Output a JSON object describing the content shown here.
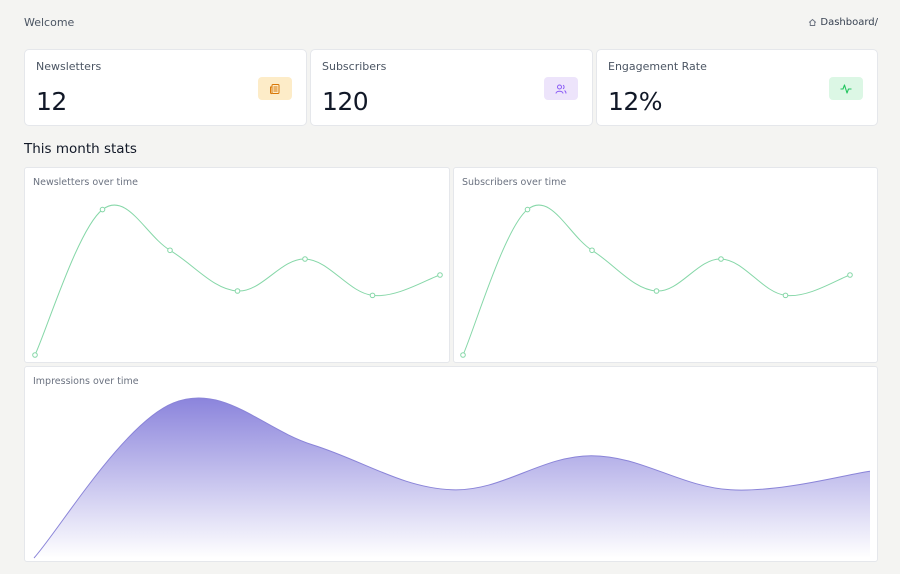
{
  "header": {
    "welcome": "Welcome",
    "breadcrumb": "Dashboard/"
  },
  "stats": [
    {
      "label": "Newsletters",
      "value": "12",
      "icon": "newspaper-icon",
      "badge_bg": "#fdecc8",
      "badge_fg": "#d97706"
    },
    {
      "label": "Subscribers",
      "value": "120",
      "icon": "users-icon",
      "badge_bg": "#ede4fb",
      "badge_fg": "#8b5cf6"
    },
    {
      "label": "Engagement Rate",
      "value": "12%",
      "icon": "activity-icon",
      "badge_bg": "#dcf7e5",
      "badge_fg": "#22c55e"
    }
  ],
  "section_title": "This month stats",
  "colors": {
    "line": "#86d7a8",
    "area_top": "#8b84dc",
    "area_bottom": "#ffffff"
  },
  "chart_data": [
    {
      "type": "line",
      "title": "Newsletters over time",
      "x": [
        0,
        1,
        2,
        3,
        4,
        5,
        6
      ],
      "values": [
        0,
        100,
        72,
        44,
        66,
        41,
        55
      ],
      "ylim": [
        0,
        110
      ],
      "grid": false
    },
    {
      "type": "line",
      "title": "Subscribers over time",
      "x": [
        0,
        1,
        2,
        3,
        4,
        5,
        6
      ],
      "values": [
        0,
        100,
        72,
        44,
        66,
        41,
        55
      ],
      "ylim": [
        0,
        110
      ],
      "grid": false
    },
    {
      "type": "area",
      "title": "Impressions over time",
      "x": [
        0,
        1,
        2,
        3,
        4,
        5,
        6
      ],
      "values": [
        0,
        100,
        73,
        44,
        66,
        44,
        56
      ],
      "ylim": [
        0,
        100
      ],
      "grid": false
    }
  ]
}
